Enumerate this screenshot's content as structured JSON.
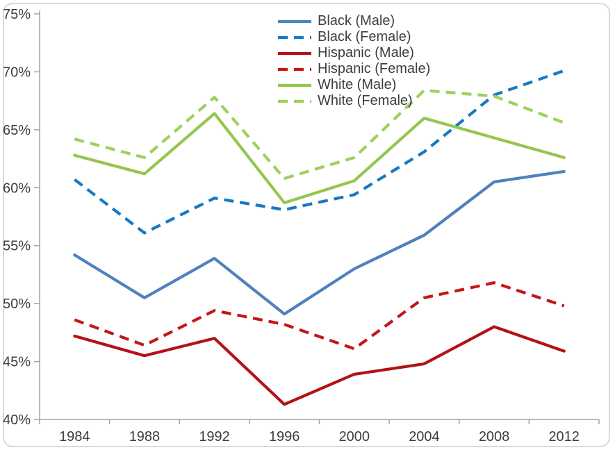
{
  "chart_data": {
    "type": "line",
    "title": "",
    "xlabel": "",
    "ylabel": "",
    "x_categories": [
      "1984",
      "1988",
      "1992",
      "1996",
      "2000",
      "2004",
      "2008",
      "2012"
    ],
    "y_tick_labels": [
      "40%",
      "45%",
      "50%",
      "55%",
      "60%",
      "65%",
      "70%",
      "75%"
    ],
    "ylim": [
      40,
      75
    ],
    "y_tick_step": 5,
    "grid": false,
    "legend_position": "top-center",
    "series": [
      {
        "name": "Black (Male)",
        "style": "solid",
        "color": "#4f81bd",
        "values": [
          54.2,
          50.5,
          53.9,
          49.1,
          53.0,
          55.9,
          60.5,
          61.4
        ]
      },
      {
        "name": "Black (Female)",
        "style": "dashed",
        "color": "#1879c0",
        "values": [
          60.7,
          56.1,
          59.1,
          58.1,
          59.4,
          63.1,
          68.0,
          70.1
        ]
      },
      {
        "name": "Hispanic (Male)",
        "style": "solid",
        "color": "#b21316",
        "values": [
          47.2,
          45.5,
          47.0,
          41.3,
          43.9,
          44.8,
          48.0,
          45.9
        ]
      },
      {
        "name": "Hispanic (Female)",
        "style": "dashed",
        "color": "#c31719",
        "values": [
          48.6,
          46.4,
          49.4,
          48.2,
          46.1,
          50.5,
          51.8,
          49.8
        ]
      },
      {
        "name": "White (Male)",
        "style": "solid",
        "color": "#94c64e",
        "values": [
          62.8,
          61.2,
          66.4,
          58.7,
          60.6,
          66.0,
          64.3,
          62.6
        ]
      },
      {
        "name": "White (Female)",
        "style": "dashed",
        "color": "#9dd05f",
        "values": [
          64.2,
          62.6,
          67.8,
          60.8,
          62.6,
          68.4,
          67.9,
          65.6
        ]
      }
    ]
  },
  "colors": {
    "axis": "#a3a3a3",
    "text": "#3d3d3d",
    "frame_border": "#d9d9d9",
    "background": "#ffffff"
  }
}
